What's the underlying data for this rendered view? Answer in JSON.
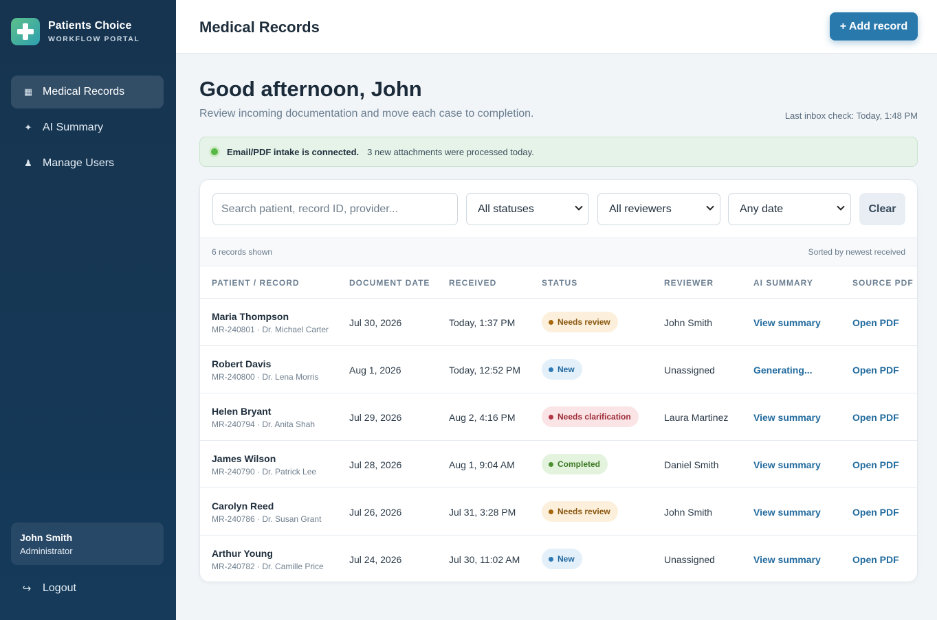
{
  "brand": {
    "name": "Patients Choice",
    "subtitle": "WORKFLOW PORTAL"
  },
  "sidebar": {
    "items": [
      {
        "label": "Medical Records",
        "icon": "grid-icon",
        "active": true
      },
      {
        "label": "AI Summary",
        "icon": "sparkle-icon",
        "active": false
      },
      {
        "label": "Manage Users",
        "icon": "user-icon",
        "active": false
      }
    ],
    "user": {
      "name": "John Smith",
      "role": "Administrator"
    },
    "logout_label": "Logout"
  },
  "header": {
    "title": "Medical Records",
    "add_button": "+ Add record"
  },
  "main": {
    "greeting": "Good afternoon, John",
    "subtitle": "Review incoming documentation and move each case to completion.",
    "last_check": "Last inbox check: Today, 1:48 PM",
    "intake": {
      "strong": "Email/PDF intake is connected.",
      "text": "3 new attachments were processed today."
    }
  },
  "filters": {
    "search_placeholder": "Search patient, record ID, provider...",
    "status": "All statuses",
    "reviewer": "All reviewers",
    "date": "Any date",
    "clear_label": "Clear"
  },
  "table": {
    "count_text": "6 records shown",
    "sort_text": "Sorted by newest received",
    "columns": [
      "PATIENT / RECORD",
      "DOCUMENT DATE",
      "RECEIVED",
      "STATUS",
      "REVIEWER",
      "AI SUMMARY",
      "SOURCE PDF"
    ],
    "rows": [
      {
        "name": "Maria Thompson",
        "sub": "MR-240801 · Dr. Michael Carter",
        "doc_date": "Jul 30, 2026",
        "received": "Today, 1:37 PM",
        "status": "Needs review",
        "status_kind": "review",
        "reviewer": "John Smith",
        "summary": "View summary",
        "pdf": "Open PDF"
      },
      {
        "name": "Robert Davis",
        "sub": "MR-240800 · Dr. Lena Morris",
        "doc_date": "Aug 1, 2026",
        "received": "Today, 12:52 PM",
        "status": "New",
        "status_kind": "new",
        "reviewer": "Unassigned",
        "summary": "Generating...",
        "pdf": "Open PDF"
      },
      {
        "name": "Helen Bryant",
        "sub": "MR-240794 · Dr. Anita Shah",
        "doc_date": "Jul 29, 2026",
        "received": "Aug 2, 4:16 PM",
        "status": "Needs clarification",
        "status_kind": "clar",
        "reviewer": "Laura Martinez",
        "summary": "View summary",
        "pdf": "Open PDF"
      },
      {
        "name": "James Wilson",
        "sub": "MR-240790 · Dr. Patrick Lee",
        "doc_date": "Jul 28, 2026",
        "received": "Aug 1, 9:04 AM",
        "status": "Completed",
        "status_kind": "done",
        "reviewer": "Daniel Smith",
        "summary": "View summary",
        "pdf": "Open PDF"
      },
      {
        "name": "Carolyn Reed",
        "sub": "MR-240786 · Dr. Susan Grant",
        "doc_date": "Jul 26, 2026",
        "received": "Jul 31, 3:28 PM",
        "status": "Needs review",
        "status_kind": "review",
        "reviewer": "John Smith",
        "summary": "View summary",
        "pdf": "Open PDF"
      },
      {
        "name": "Arthur Young",
        "sub": "MR-240782 · Dr. Camille Price",
        "doc_date": "Jul 24, 2026",
        "received": "Jul 30, 11:02 AM",
        "status": "New",
        "status_kind": "new",
        "reviewer": "Unassigned",
        "summary": "View summary",
        "pdf": "Open PDF"
      }
    ]
  },
  "colors": {
    "sidebar": "#16344f",
    "accent": "#2a79ad",
    "intake_bg": "#e6f3e8"
  }
}
